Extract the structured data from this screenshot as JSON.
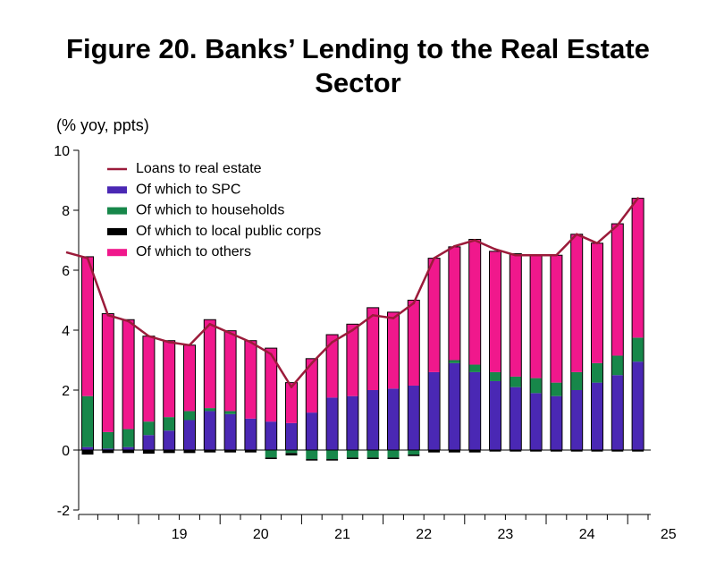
{
  "title_line1": "Figure 20. Banks’ Lending to the Real Estate",
  "title_line2": "Sector",
  "chart_data": {
    "type": "bar",
    "ylabel": "(% yoy, ppts)",
    "ylim": [
      -2,
      10
    ],
    "yticks": [
      -2,
      0,
      2,
      4,
      6,
      8,
      10
    ],
    "year_labels": [
      "19",
      "20",
      "21",
      "22",
      "23",
      "24",
      "25"
    ],
    "quarters": [
      "2018Q2",
      "2018Q3",
      "2018Q4",
      "2019Q1",
      "2019Q2",
      "2019Q3",
      "2019Q4",
      "2020Q1",
      "2020Q2",
      "2020Q3",
      "2020Q4",
      "2021Q1",
      "2021Q2",
      "2021Q3",
      "2021Q4",
      "2022Q1",
      "2022Q2",
      "2022Q3",
      "2022Q4",
      "2023Q1",
      "2023Q2",
      "2023Q3",
      "2023Q4",
      "2024Q1",
      "2024Q2",
      "2024Q3",
      "2024Q4",
      "2025Q1"
    ],
    "line_start": 6.6,
    "legend_position": "top-left",
    "series": [
      {
        "name": "Loans to real estate",
        "kind": "line",
        "color": "#9b1b3a",
        "values": [
          6.4,
          4.5,
          4.3,
          3.8,
          3.6,
          3.5,
          4.2,
          3.9,
          3.6,
          3.2,
          2.1,
          2.9,
          3.6,
          4.0,
          4.5,
          4.4,
          4.9,
          6.4,
          6.8,
          7.0,
          6.7,
          6.5,
          6.5,
          6.5,
          7.2,
          6.9,
          7.5,
          8.4
        ]
      },
      {
        "name": "Of which to SPC",
        "kind": "bar",
        "color": "#4a28b4",
        "values": [
          0.1,
          0.05,
          0.1,
          0.5,
          0.65,
          1.0,
          1.3,
          1.2,
          1.05,
          0.95,
          0.9,
          1.25,
          1.75,
          1.8,
          2.0,
          2.05,
          2.15,
          2.6,
          2.9,
          2.6,
          2.3,
          2.1,
          1.9,
          1.8,
          2.0,
          2.25,
          2.5,
          2.95
        ]
      },
      {
        "name": "Of which to households",
        "kind": "bar",
        "color": "#17874a",
        "values": [
          1.7,
          0.55,
          0.6,
          0.45,
          0.45,
          0.3,
          0.1,
          0.1,
          0.0,
          -0.25,
          -0.1,
          -0.3,
          -0.3,
          -0.25,
          -0.25,
          -0.25,
          -0.15,
          0.0,
          0.1,
          0.25,
          0.3,
          0.35,
          0.5,
          0.45,
          0.6,
          0.65,
          0.65,
          0.8
        ]
      },
      {
        "name": "Of which to local public corps",
        "kind": "bar",
        "color": "#000000",
        "values": [
          -0.15,
          -0.1,
          -0.1,
          -0.12,
          -0.1,
          -0.1,
          -0.08,
          -0.08,
          -0.08,
          -0.05,
          -0.08,
          -0.05,
          -0.05,
          -0.05,
          -0.05,
          -0.05,
          -0.05,
          -0.08,
          -0.08,
          -0.08,
          -0.05,
          -0.05,
          -0.05,
          -0.05,
          -0.05,
          -0.05,
          -0.05,
          -0.05
        ]
      },
      {
        "name": "Of which to others",
        "kind": "bar",
        "color": "#f0188c",
        "values": [
          4.65,
          3.95,
          3.65,
          2.85,
          2.55,
          2.2,
          2.95,
          2.68,
          2.6,
          2.45,
          1.35,
          1.8,
          2.1,
          2.4,
          2.75,
          2.55,
          2.85,
          3.8,
          3.78,
          4.18,
          4.03,
          4.1,
          4.1,
          4.25,
          4.6,
          4.0,
          4.4,
          4.65
        ]
      }
    ]
  }
}
